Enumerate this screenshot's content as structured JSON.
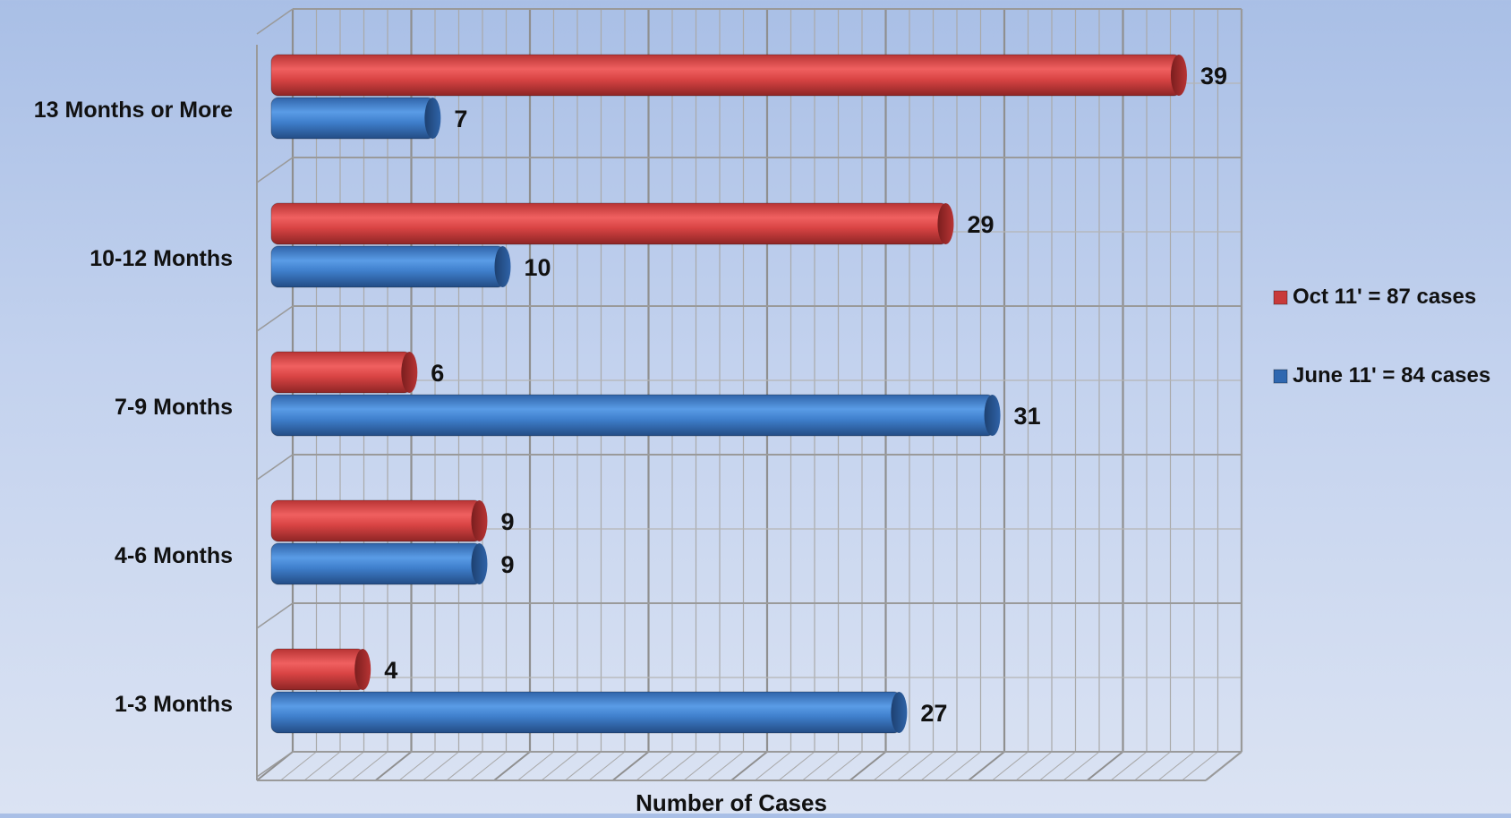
{
  "chart_data": {
    "type": "bar",
    "orientation": "horizontal",
    "style": "3d-cylinder",
    "categories": [
      "13 Months or More",
      "10-12 Months",
      "7-9 Months",
      "4-6 Months",
      "1-3 Months"
    ],
    "series": [
      {
        "name": "Oct 11' = 87 cases",
        "color": "#d94444",
        "values": [
          39,
          29,
          6,
          9,
          4
        ]
      },
      {
        "name": "June 11' = 84 cases",
        "color": "#3f7fcc",
        "values": [
          7,
          10,
          31,
          9,
          27
        ]
      }
    ],
    "xlabel": "Number of Cases",
    "ylabel": "",
    "title": "",
    "xlim": [
      0,
      40
    ],
    "grid": true,
    "legend_position": "right",
    "data_labels": true
  }
}
